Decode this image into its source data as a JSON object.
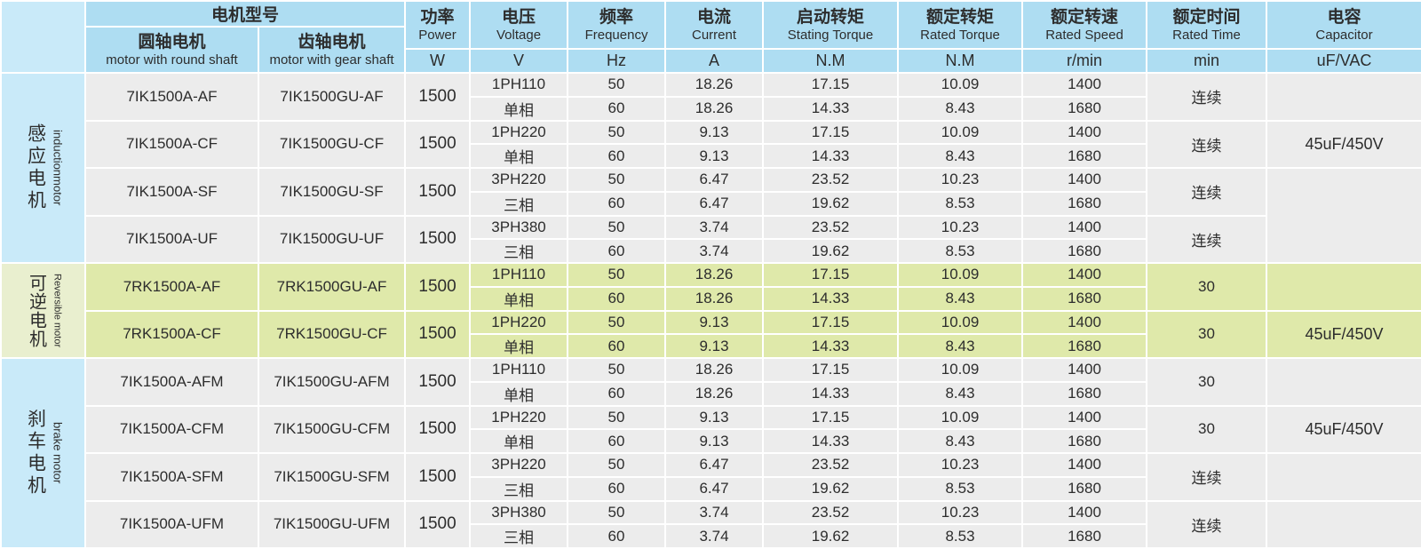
{
  "colors": {
    "header_blue": "#aeddf2",
    "label_blue": "#c9eaf9",
    "row_gray": "#ececec",
    "row_green": "#dfe9aa",
    "label_green": "#e9efcf",
    "border": "#ffffff",
    "text": "#2d2d2d"
  },
  "table": {
    "header": {
      "model_group": "电机型号",
      "round_shaft": {
        "zh": "圆轴电机",
        "en": "motor with round shaft"
      },
      "gear_shaft": {
        "zh": "齿轴电机",
        "en": "motor with gear shaft"
      },
      "columns": [
        {
          "key": "power",
          "zh": "功率",
          "en": "Power",
          "unit": "W"
        },
        {
          "key": "voltage",
          "zh": "电压",
          "en": "Voltage",
          "unit": "V"
        },
        {
          "key": "frequency",
          "zh": "频率",
          "en": "Frequency",
          "unit": "Hz"
        },
        {
          "key": "current",
          "zh": "电流",
          "en": "Current",
          "unit": "A"
        },
        {
          "key": "starting_torque",
          "zh": "启动转矩",
          "en": "Stating Torque",
          "unit": "N.M"
        },
        {
          "key": "rated_torque",
          "zh": "额定转矩",
          "en": "Rated Torque",
          "unit": "N.M"
        },
        {
          "key": "rated_speed",
          "zh": "额定转速",
          "en": "Rated Speed",
          "unit": "r/min"
        },
        {
          "key": "rated_time",
          "zh": "额定时间",
          "en": "Rated Time",
          "unit": "min"
        },
        {
          "key": "capacitor",
          "zh": "电容",
          "en": "Capacitor",
          "unit": "uF/VAC"
        }
      ]
    },
    "sections": [
      {
        "id": "induction",
        "label_zh": "感应电机",
        "label_en": "inductionmotor",
        "theme": "gray",
        "label_theme": "blue",
        "rows": [
          {
            "round": "7IK1500A-AF",
            "gear": "7IK1500GU-AF",
            "power": "1500",
            "voltage": "1PH110",
            "phase": "单相",
            "freq": [
              "50",
              "60"
            ],
            "current": [
              "18.26",
              "18.26"
            ],
            "starting_torque": [
              "17.15",
              "14.33"
            ],
            "rated_torque": [
              "10.09",
              "8.43"
            ],
            "rated_speed": [
              "1400",
              "1680"
            ],
            "rated_time": "连续",
            "capacitor": "",
            "capacitor_rowspan": 2
          },
          {
            "round": "7IK1500A-CF",
            "gear": "7IK1500GU-CF",
            "power": "1500",
            "voltage": "1PH220",
            "phase": "单相",
            "freq": [
              "50",
              "60"
            ],
            "current": [
              "9.13",
              "9.13"
            ],
            "starting_torque": [
              "17.15",
              "14.33"
            ],
            "rated_torque": [
              "10.09",
              "8.43"
            ],
            "rated_speed": [
              "1400",
              "1680"
            ],
            "rated_time": "连续",
            "capacitor": "45uF/450V",
            "capacitor_rowspan": 2
          },
          {
            "round": "7IK1500A-SF",
            "gear": "7IK1500GU-SF",
            "power": "1500",
            "voltage": "3PH220",
            "phase": "三相",
            "freq": [
              "50",
              "60"
            ],
            "current": [
              "6.47",
              "6.47"
            ],
            "starting_torque": [
              "23.52",
              "19.62"
            ],
            "rated_torque": [
              "10.23",
              "8.53"
            ],
            "rated_speed": [
              "1400",
              "1680"
            ],
            "rated_time": "连续",
            "capacitor": "",
            "capacitor_rowspan": 4
          },
          {
            "round": "7IK1500A-UF",
            "gear": "7IK1500GU-UF",
            "power": "1500",
            "voltage": "3PH380",
            "phase": "三相",
            "freq": [
              "50",
              "60"
            ],
            "current": [
              "3.74",
              "3.74"
            ],
            "starting_torque": [
              "23.52",
              "19.62"
            ],
            "rated_torque": [
              "10.23",
              "8.53"
            ],
            "rated_speed": [
              "1400",
              "1680"
            ],
            "rated_time": "连续",
            "capacitor": "",
            "capacitor_rowspan": 0
          }
        ]
      },
      {
        "id": "reversible",
        "label_zh": "可逆电机",
        "label_en": "Reversible motor",
        "theme": "green",
        "label_theme": "green",
        "rows": [
          {
            "round": "7RK1500A-AF",
            "gear": "7RK1500GU-AF",
            "power": "1500",
            "voltage": "1PH110",
            "phase": "单相",
            "freq": [
              "50",
              "60"
            ],
            "current": [
              "18.26",
              "18.26"
            ],
            "starting_torque": [
              "17.15",
              "14.33"
            ],
            "rated_torque": [
              "10.09",
              "8.43"
            ],
            "rated_speed": [
              "1400",
              "1680"
            ],
            "rated_time": "30",
            "capacitor": "",
            "capacitor_rowspan": 2
          },
          {
            "round": "7RK1500A-CF",
            "gear": "7RK1500GU-CF",
            "power": "1500",
            "voltage": "1PH220",
            "phase": "单相",
            "freq": [
              "50",
              "60"
            ],
            "current": [
              "9.13",
              "9.13"
            ],
            "starting_torque": [
              "17.15",
              "14.33"
            ],
            "rated_torque": [
              "10.09",
              "8.43"
            ],
            "rated_speed": [
              "1400",
              "1680"
            ],
            "rated_time": "30",
            "capacitor": "45uF/450V",
            "capacitor_rowspan": 2
          }
        ]
      },
      {
        "id": "brake",
        "label_zh": "刹车电机",
        "label_en": "brake motor",
        "theme": "gray",
        "label_theme": "blue",
        "rows": [
          {
            "round": "7IK1500A-AFM",
            "gear": "7IK1500GU-AFM",
            "power": "1500",
            "voltage": "1PH110",
            "phase": "单相",
            "freq": [
              "50",
              "60"
            ],
            "current": [
              "18.26",
              "18.26"
            ],
            "starting_torque": [
              "17.15",
              "14.33"
            ],
            "rated_torque": [
              "10.09",
              "8.43"
            ],
            "rated_speed": [
              "1400",
              "1680"
            ],
            "rated_time": "30",
            "capacitor": "",
            "capacitor_rowspan": 2
          },
          {
            "round": "7IK1500A-CFM",
            "gear": "7IK1500GU-CFM",
            "power": "1500",
            "voltage": "1PH220",
            "phase": "单相",
            "freq": [
              "50",
              "60"
            ],
            "current": [
              "9.13",
              "9.13"
            ],
            "starting_torque": [
              "17.15",
              "14.33"
            ],
            "rated_torque": [
              "10.09",
              "8.43"
            ],
            "rated_speed": [
              "1400",
              "1680"
            ],
            "rated_time": "30",
            "capacitor": "45uF/450V",
            "capacitor_rowspan": 2
          },
          {
            "round": "7IK1500A-SFM",
            "gear": "7IK1500GU-SFM",
            "power": "1500",
            "voltage": "3PH220",
            "phase": "三相",
            "freq": [
              "50",
              "60"
            ],
            "current": [
              "6.47",
              "6.47"
            ],
            "starting_torque": [
              "23.52",
              "19.62"
            ],
            "rated_torque": [
              "10.23",
              "8.53"
            ],
            "rated_speed": [
              "1400",
              "1680"
            ],
            "rated_time": "连续",
            "capacitor": "",
            "capacitor_rowspan": 2
          },
          {
            "round": "7IK1500A-UFM",
            "gear": "7IK1500GU-UFM",
            "power": "1500",
            "voltage": "3PH380",
            "phase": "三相",
            "freq": [
              "50",
              "60"
            ],
            "current": [
              "3.74",
              "3.74"
            ],
            "starting_torque": [
              "23.52",
              "19.62"
            ],
            "rated_torque": [
              "10.23",
              "8.53"
            ],
            "rated_speed": [
              "1400",
              "1680"
            ],
            "rated_time": "连续",
            "capacitor": "",
            "capacitor_rowspan": 2
          }
        ]
      }
    ]
  }
}
